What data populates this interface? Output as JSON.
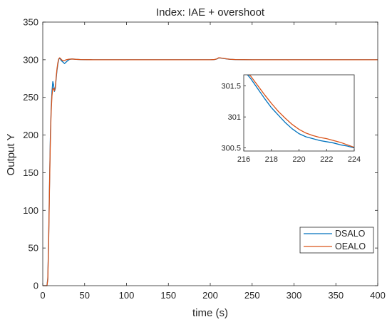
{
  "chart_data": {
    "type": "line",
    "title": "Index: IAE + overshoot",
    "xlabel": "time (s)",
    "ylabel": "Output Y",
    "xlim": [
      0,
      400
    ],
    "ylim": [
      0,
      350
    ],
    "xticks": [
      "0",
      "50",
      "100",
      "150",
      "200",
      "250",
      "300",
      "350",
      "400"
    ],
    "yticks": [
      "0",
      "50",
      "100",
      "150",
      "200",
      "250",
      "300",
      "350"
    ],
    "grid": false,
    "legend_position": "bottom-right",
    "series": [
      {
        "name": "DSALO",
        "color": "#0072BD",
        "x": [
          0,
          5,
          6,
          7,
          8,
          9,
          10,
          11,
          12,
          13,
          14,
          15,
          16,
          17,
          18,
          19,
          20,
          21,
          22,
          23,
          24,
          25,
          26,
          27,
          28,
          30,
          32,
          35,
          40,
          45,
          50,
          60,
          80,
          100,
          150,
          200,
          205,
          208,
          210,
          212,
          215,
          220,
          224,
          230,
          250,
          300,
          350,
          400
        ],
        "y": [
          0,
          0,
          10,
          60,
          130,
          195,
          235,
          258,
          271,
          266,
          258,
          262,
          275,
          286,
          294,
          300,
          302,
          301,
          299,
          298,
          297,
          296,
          295,
          296,
          297,
          299,
          300.5,
          301,
          300.5,
          300.2,
          300.1,
          300,
          300,
          300,
          300,
          300,
          300.2,
          301,
          302.3,
          302.2,
          301.8,
          301,
          300.5,
          300.2,
          300,
          300,
          300,
          300
        ]
      },
      {
        "name": "OEALO",
        "color": "#D95319",
        "x": [
          0,
          5,
          6,
          7,
          8,
          9,
          10,
          11,
          12,
          13,
          14,
          15,
          16,
          17,
          18,
          19,
          20,
          21,
          22,
          23,
          24,
          25,
          26,
          27,
          28,
          30,
          32,
          35,
          40,
          45,
          50,
          60,
          80,
          100,
          150,
          200,
          205,
          208,
          210,
          212,
          215,
          220,
          224,
          230,
          250,
          300,
          350,
          400
        ],
        "y": [
          0,
          0,
          8,
          55,
          125,
          190,
          230,
          252,
          262,
          261,
          259,
          264,
          277,
          288,
          296,
          301,
          302.5,
          302,
          300.5,
          299.5,
          299,
          298.5,
          299,
          299.5,
          300,
          300.5,
          300.8,
          301,
          300.5,
          300.2,
          300.1,
          300,
          300,
          300,
          300,
          300,
          300.3,
          301.2,
          302.6,
          302.5,
          302,
          301.1,
          300.55,
          300.25,
          300,
          300,
          300,
          300
        ]
      }
    ],
    "inset": {
      "xlim": [
        216,
        224
      ],
      "ylim": [
        300.45,
        301.68
      ],
      "xticks": [
        "216",
        "218",
        "220",
        "222",
        "224"
      ],
      "yticks": [
        "300.5",
        "301",
        "301.5"
      ],
      "series": [
        {
          "name": "DSALO",
          "x": [
            216,
            216.5,
            217,
            217.5,
            218,
            218.5,
            219,
            219.5,
            220,
            220.5,
            221,
            221.5,
            222,
            222.5,
            223,
            223.5,
            224
          ],
          "y": [
            301.75,
            301.62,
            301.46,
            301.3,
            301.15,
            301.03,
            300.91,
            300.81,
            300.73,
            300.68,
            300.65,
            300.62,
            300.6,
            300.58,
            300.55,
            300.53,
            300.5
          ]
        },
        {
          "name": "OEALO",
          "x": [
            216,
            216.5,
            217,
            217.5,
            218,
            218.5,
            219,
            219.5,
            220,
            220.5,
            221,
            221.5,
            222,
            222.5,
            223,
            223.5,
            224
          ],
          "y": [
            301.75,
            301.66,
            301.51,
            301.36,
            301.22,
            301.09,
            300.98,
            300.88,
            300.8,
            300.74,
            300.7,
            300.67,
            300.65,
            300.62,
            300.59,
            300.55,
            300.51
          ]
        }
      ]
    }
  }
}
